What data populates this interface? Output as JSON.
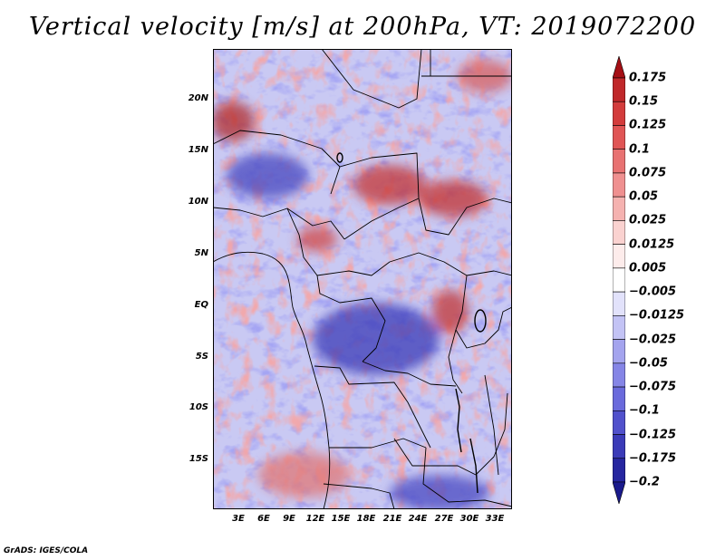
{
  "title": "Vertical velocity [m/s] at 200hPa, VT: 2019072200",
  "footer": "GrADS: IGES/COLA",
  "map": {
    "region": "Central Africa",
    "lon_range": [
      0,
      36
    ],
    "lat_range": [
      -20,
      25
    ],
    "lat_ticks": [
      {
        "label": "20N",
        "lat": 20
      },
      {
        "label": "15N",
        "lat": 15
      },
      {
        "label": "10N",
        "lat": 10
      },
      {
        "label": "5N",
        "lat": 5
      },
      {
        "label": "EQ",
        "lat": 0
      },
      {
        "label": "5S",
        "lat": -5
      },
      {
        "label": "10S",
        "lat": -10
      },
      {
        "label": "15S",
        "lat": -15
      }
    ],
    "lon_ticks": [
      {
        "label": "3E",
        "lon": 3
      },
      {
        "label": "6E",
        "lon": 6
      },
      {
        "label": "9E",
        "lon": 9
      },
      {
        "label": "12E",
        "lon": 12
      },
      {
        "label": "15E",
        "lon": 15
      },
      {
        "label": "18E",
        "lon": 18
      },
      {
        "label": "21E",
        "lon": 21
      },
      {
        "label": "24E",
        "lon": 24
      },
      {
        "label": "27E",
        "lon": 27
      },
      {
        "label": "30E",
        "lon": 30
      },
      {
        "label": "33E",
        "lon": 33
      }
    ]
  },
  "colorbar": {
    "levels": [
      {
        "label": "0.175",
        "color": "#a50f15"
      },
      {
        "label": "0.15",
        "color": "#c0282a"
      },
      {
        "label": "0.125",
        "color": "#d33c3c"
      },
      {
        "label": "0.1",
        "color": "#e05555"
      },
      {
        "label": "0.075",
        "color": "#e87272"
      },
      {
        "label": "0.05",
        "color": "#ef9090"
      },
      {
        "label": "0.025",
        "color": "#f5b2b0"
      },
      {
        "label": "0.0125",
        "color": "#fad2d0"
      },
      {
        "label": "0.005",
        "color": "#fdeceb"
      },
      {
        "label": "−0.005",
        "color": "#ffffff"
      },
      {
        "label": "−0.0125",
        "color": "#e2e2fb"
      },
      {
        "label": "−0.025",
        "color": "#c3c3f5"
      },
      {
        "label": "−0.05",
        "color": "#a4a4ee"
      },
      {
        "label": "−0.075",
        "color": "#8585e6"
      },
      {
        "label": "−0.1",
        "color": "#6a6adc"
      },
      {
        "label": "−0.125",
        "color": "#5151cc"
      },
      {
        "label": "−0.175",
        "color": "#3b3bb8"
      },
      {
        "label": "−0.2",
        "color": "#2626a0"
      }
    ],
    "top_cap_color": "#a50f15",
    "bottom_cap_color": "#1a1a8c"
  }
}
